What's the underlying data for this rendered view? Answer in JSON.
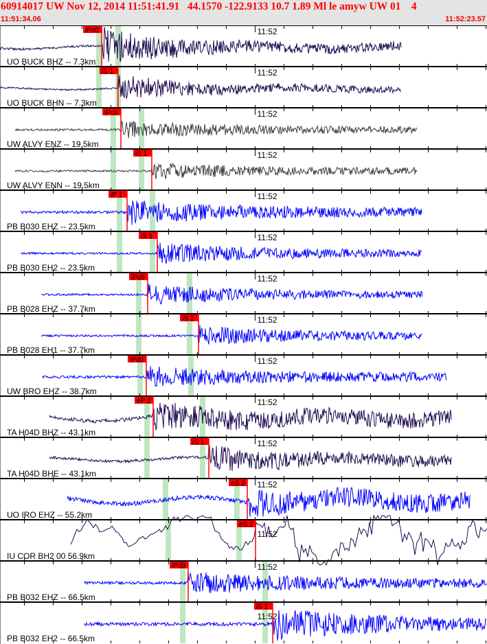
{
  "header": {
    "title": "60914017 UW Nov 12, 2014 11:51:41.91   44.1570 -122.9133 10.7 1.89 Ml le amyw UW 01    4",
    "start_time": "11:51:34.06",
    "end_time": "11:52:23.57",
    "minute_label": "11:52",
    "window_seconds": 49.51,
    "minute_mark_seconds": 25.94
  },
  "colors": {
    "header_bg": "#e4e4e4",
    "header_text": "#ff0000",
    "pick": "#ff0000",
    "band": "#bfe6c0",
    "purple": "#1e0a4e",
    "gray": "#3c3c3c",
    "blue": "#0000ff"
  },
  "traces": [
    {
      "label": "UO BUCK BHZ -- 7.3km",
      "color": "purple",
      "start": 0,
      "end": 40.85,
      "pick": {
        "label": "iPc0",
        "time": 10.34
      },
      "bands": [
        10.06,
        12.01
      ],
      "pre": 4,
      "post": 26,
      "style": "long"
    },
    {
      "label": "UO BUCK BHN -- 7.3km",
      "color": "purple",
      "start": 0,
      "end": 40.85,
      "pick": {
        "label": "iS 1",
        "time": 12.0
      },
      "bands": [
        10.06,
        12.01
      ],
      "pre": 3,
      "post": 18,
      "style": "long"
    },
    {
      "label": "UW ALVY ENZ -- 19.5km",
      "color": "gray",
      "start": 1.54,
      "end": 42.46,
      "pick": {
        "label": "iPc0",
        "time": 12.29
      },
      "bands": [
        11.52,
        14.39
      ],
      "pre": 3,
      "post": 12,
      "style": "noise"
    },
    {
      "label": "UW ALVY ENN -- 19.5km",
      "color": "gray",
      "start": 1.54,
      "end": 42.46,
      "pick": {
        "label": "iS 1",
        "time": 15.43
      },
      "bands": [
        11.52,
        14.39
      ],
      "pre": 3,
      "post": 11,
      "style": "noise"
    },
    {
      "label": "PB B030 EHZ -- 23.5km",
      "color": "blue",
      "start": 2.1,
      "end": 42.95,
      "pick": {
        "label": "iP 1",
        "time": 12.92
      },
      "bands": [
        12.15,
        15.5
      ],
      "pre": 4,
      "post": 18,
      "style": "noise"
    },
    {
      "label": "PB B030 EH2 -- 23.5km",
      "color": "blue",
      "start": 2.1,
      "end": 42.95,
      "pick": {
        "label": "iS 1",
        "time": 15.99
      },
      "bands": [
        12.15,
        15.5
      ],
      "pre": 3,
      "post": 16,
      "style": "noise"
    },
    {
      "label": "PB B028 EHZ -- 37.7km",
      "color": "blue",
      "start": 4.19,
      "end": 42.95,
      "pick": {
        "label": "iPc0",
        "time": 15.01
      },
      "bands": [
        14.11,
        19.27
      ],
      "pre": 3,
      "post": 14,
      "style": "noise"
    },
    {
      "label": "PB B028 EH1 -- 37.7km",
      "color": "blue",
      "start": 4.19,
      "end": 42.95,
      "pick": {
        "label": "iS 1",
        "time": 20.18
      },
      "bands": [
        14.11,
        19.27
      ],
      "pre": 3,
      "post": 14,
      "style": "noise"
    },
    {
      "label": "UW BRO EHZ -- 38.7km",
      "color": "blue",
      "start": 4.33,
      "end": 45.4,
      "pick": {
        "label": "iPd0",
        "time": 14.87
      },
      "bands": [
        14.25,
        19.41
      ],
      "pre": 4,
      "post": 14,
      "style": "noise"
    },
    {
      "label": "TA H04D BHZ -- 43.1km",
      "color": "purple",
      "start": 5.03,
      "end": 45.95,
      "pick": {
        "label": "eP 2",
        "time": 15.57
      },
      "bands": [
        14.94,
        20.6
      ],
      "pre": 7,
      "post": 17,
      "style": "long"
    },
    {
      "label": "TA H04D BHE -- 43.1km",
      "color": "purple",
      "start": 5.03,
      "end": 45.95,
      "pick": {
        "label": "iS 1",
        "time": 21.23
      },
      "bands": [
        14.94,
        20.6
      ],
      "pre": 5,
      "post": 17,
      "style": "long"
    },
    {
      "label": "UO IRO EHZ -- 55.2km",
      "color": "blue",
      "start": 6.84,
      "end": 47.84,
      "pick": {
        "label": "eS 2",
        "time": 25.14
      },
      "bands": [
        16.83,
        24.09
      ],
      "pre": 8,
      "post": 16,
      "style": "long"
    },
    {
      "label": "IU COR BH2 00 56.9km",
      "color": "purple",
      "start": 7.19,
      "end": 49.51,
      "pick": {
        "label": "eS 2",
        "time": 25.98
      },
      "bands": [
        17.11,
        24.3
      ],
      "pre": 20,
      "post": 24,
      "style": "smooth"
    },
    {
      "label": "PB B032 EHZ -- 66.5km",
      "color": "blue",
      "start": 8.59,
      "end": 49.51,
      "pick": {
        "label": "iPd0",
        "time": 19.13
      },
      "bands": [
        18.58,
        26.96
      ],
      "pre": 4,
      "post": 16,
      "style": "noise"
    },
    {
      "label": "PB B032 EH2 -- 66.5km",
      "color": "blue",
      "start": 8.59,
      "end": 49.51,
      "pick": {
        "label": "iS 1",
        "time": 27.72
      },
      "bands": [
        18.58,
        26.96
      ],
      "pre": 5,
      "post": 22,
      "style": "noise"
    }
  ]
}
